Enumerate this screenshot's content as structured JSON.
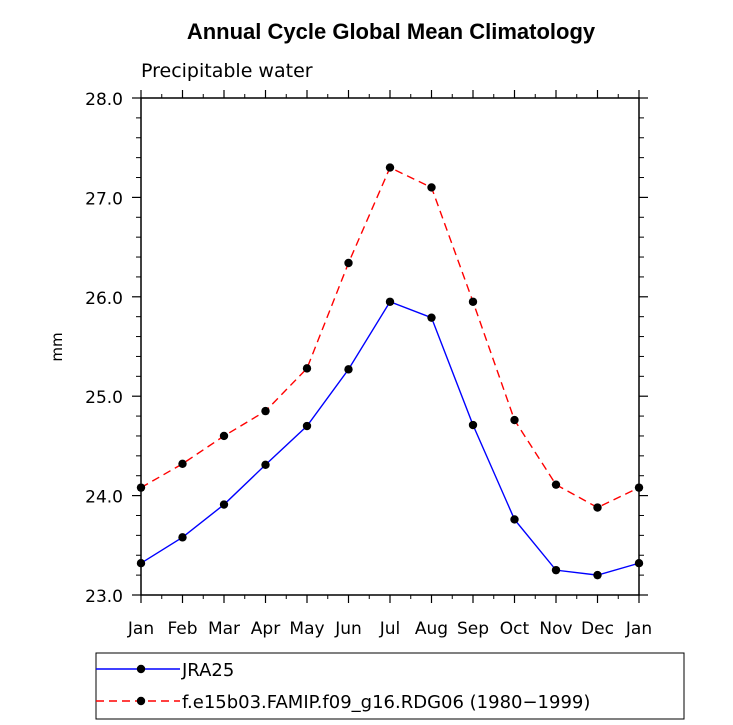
{
  "chart_data": {
    "type": "line",
    "title": "Annual Cycle Global Mean Climatology",
    "subtitle": "Precipitable water",
    "xlabel": "",
    "ylabel": "mm",
    "categories": [
      "Jan",
      "Feb",
      "Mar",
      "Apr",
      "May",
      "Jun",
      "Jul",
      "Aug",
      "Sep",
      "Oct",
      "Nov",
      "Dec",
      "Jan"
    ],
    "ylim": [
      23.0,
      28.0
    ],
    "yticks": [
      "23.0",
      "24.0",
      "25.0",
      "26.0",
      "27.0",
      "28.0"
    ],
    "grid": false,
    "legend_position": "bottom",
    "series": [
      {
        "name": "JRA25",
        "color": "#0000ff",
        "dashed": false,
        "values": [
          23.32,
          23.58,
          23.91,
          24.31,
          24.7,
          25.27,
          25.95,
          25.79,
          24.71,
          23.76,
          23.25,
          23.2,
          23.32
        ]
      },
      {
        "name": "f.e15b03.FAMIP.f09_g16.RDG06 (1980−1999)",
        "color": "#ff0000",
        "dashed": true,
        "values": [
          24.08,
          24.32,
          24.6,
          24.85,
          25.28,
          26.34,
          27.3,
          27.1,
          25.95,
          24.76,
          24.11,
          23.88,
          24.08
        ]
      }
    ]
  }
}
